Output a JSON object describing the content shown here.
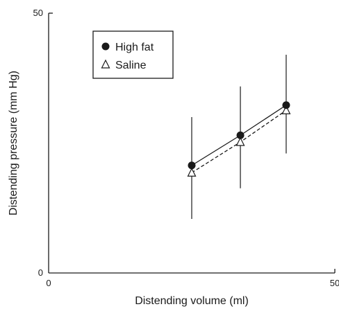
{
  "chart_data": {
    "type": "line",
    "xlabel": "Distending volume (ml)",
    "ylabel": "Distending pressure (mm Hg)",
    "xlim": [
      0,
      50
    ],
    "ylim": [
      0,
      50
    ],
    "x_ticks": [
      "0",
      "50"
    ],
    "y_ticks": [
      "0",
      "50"
    ],
    "grid": false,
    "legend_position": "top-left",
    "series": [
      {
        "name": "High fat",
        "marker": "filled-circle",
        "line_style": "solid",
        "color": "#1a1a1a",
        "x": [
          25,
          33.5,
          41.5
        ],
        "y": [
          20.7,
          26.5,
          32.3
        ],
        "error_low": [
          10.4,
          16.3,
          23
        ],
        "error_high": [
          30,
          35.9,
          42
        ]
      },
      {
        "name": "Saline",
        "marker": "open-triangle",
        "line_style": "dashed",
        "color": "#1a1a1a",
        "x": [
          25,
          33.5,
          41.5
        ],
        "y": [
          19.3,
          25.2,
          31.3
        ],
        "error_low": null,
        "error_high": null
      }
    ]
  }
}
